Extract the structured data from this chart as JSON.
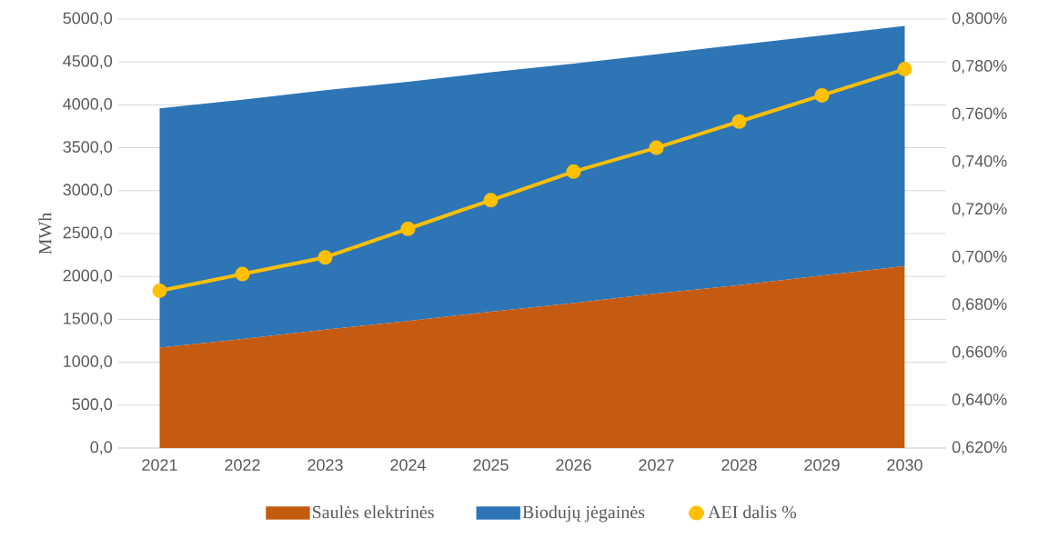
{
  "chart_data": {
    "type": "area",
    "stacked": true,
    "categories": [
      "2021",
      "2022",
      "2023",
      "2024",
      "2025",
      "2026",
      "2027",
      "2028",
      "2029",
      "2030"
    ],
    "ylabel": "MWh",
    "ylim": [
      0,
      5000
    ],
    "yticks": [
      {
        "value": 0,
        "label": "0,0"
      },
      {
        "value": 500,
        "label": "500,0"
      },
      {
        "value": 1000,
        "label": "1000,0"
      },
      {
        "value": 1500,
        "label": "1500,0"
      },
      {
        "value": 2000,
        "label": "2000,0"
      },
      {
        "value": 2500,
        "label": "2500,0"
      },
      {
        "value": 3000,
        "label": "3000,0"
      },
      {
        "value": 3500,
        "label": "3500,0"
      },
      {
        "value": 4000,
        "label": "4000,0"
      },
      {
        "value": 4500,
        "label": "4500,0"
      },
      {
        "value": 5000,
        "label": "5000,0"
      }
    ],
    "y2lim": [
      0.62,
      0.8
    ],
    "y2ticks": [
      {
        "value": 0.62,
        "label": "0,620%"
      },
      {
        "value": 0.64,
        "label": "0,640%"
      },
      {
        "value": 0.66,
        "label": "0,660%"
      },
      {
        "value": 0.68,
        "label": "0,680%"
      },
      {
        "value": 0.7,
        "label": "0,700%"
      },
      {
        "value": 0.72,
        "label": "0,720%"
      },
      {
        "value": 0.74,
        "label": "0,740%"
      },
      {
        "value": 0.76,
        "label": "0,760%"
      },
      {
        "value": 0.78,
        "label": "0,780%"
      },
      {
        "value": 0.8,
        "label": "0,800%"
      }
    ],
    "grid": "y",
    "legend": "bottom",
    "series": [
      {
        "name": "Saulės elektrinės",
        "color": "#c55a11",
        "values": [
          1170,
          1270,
          1380,
          1480,
          1590,
          1690,
          1800,
          1900,
          2010,
          2120
        ]
      },
      {
        "name": "Biodujų jėgainės",
        "color": "#2e75b6",
        "values": [
          2790,
          2790,
          2790,
          2790,
          2790,
          2790,
          2790,
          2800,
          2800,
          2800
        ]
      },
      {
        "name": "AEI dalis %",
        "type": "line",
        "axis": "y2",
        "marker": "circle",
        "color": "#ffc000",
        "values": [
          0.686,
          0.693,
          0.7,
          0.712,
          0.724,
          0.736,
          0.746,
          0.757,
          0.768,
          0.779
        ]
      }
    ]
  }
}
